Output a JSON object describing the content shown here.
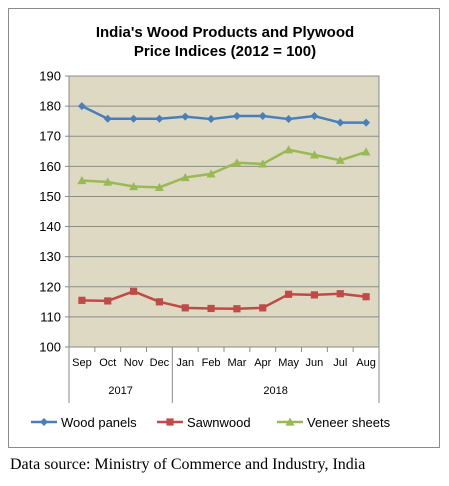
{
  "chart_data": {
    "type": "line",
    "title": [
      "India's Wood Products and Plywood",
      "Price Indices (2012 = 100)"
    ],
    "categories": [
      "Sep",
      "Oct",
      "Nov",
      "Dec",
      "Jan",
      "Feb",
      "Mar",
      "Apr",
      "May",
      "Jun",
      "Jul",
      "Aug"
    ],
    "year_groups": [
      {
        "label": "2017",
        "start": 0,
        "end": 3
      },
      {
        "label": "2018",
        "start": 4,
        "end": 11
      }
    ],
    "ylim": [
      100,
      190
    ],
    "yticks": [
      100,
      110,
      120,
      130,
      140,
      150,
      160,
      170,
      180,
      190
    ],
    "grid": true,
    "legend": "bottom",
    "series": [
      {
        "name": "Wood panels",
        "color": "#4a7ebb",
        "marker": "diamond",
        "values": [
          180,
          175.8,
          175.8,
          175.8,
          176.5,
          175.7,
          176.7,
          176.7,
          175.7,
          176.7,
          174.5,
          174.5
        ]
      },
      {
        "name": "Sawnwood",
        "color": "#be4b48",
        "marker": "square",
        "values": [
          115.5,
          115.3,
          118.5,
          115,
          113,
          112.8,
          112.7,
          113,
          117.5,
          117.3,
          117.7,
          116.7
        ]
      },
      {
        "name": "Veneer sheets",
        "color": "#98b954",
        "marker": "triangle",
        "values": [
          155.3,
          154.8,
          153.3,
          153,
          156.3,
          157.5,
          161.2,
          160.8,
          165.5,
          163.8,
          162,
          164.8
        ]
      }
    ],
    "plot_background": "#ddd9c3",
    "source": "Data source: Ministry of Commerce and Industry, India"
  }
}
